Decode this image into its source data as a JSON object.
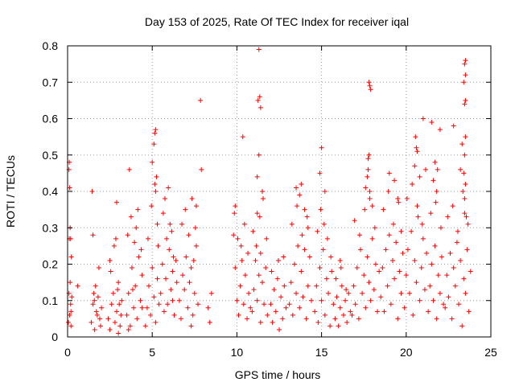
{
  "chart_data": {
    "type": "scatter",
    "title": "Day 153 of 2025, Rate Of TEC Index for receiver iqal",
    "xlabel": "GPS time / hours",
    "ylabel": "ROTI / TECUs",
    "xlim": [
      0,
      25
    ],
    "ylim": [
      0,
      0.8
    ],
    "xticks": [
      0,
      5,
      10,
      15,
      20,
      25
    ],
    "yticks": [
      0,
      0.1,
      0.2,
      0.3,
      0.4,
      0.5,
      0.6,
      0.7,
      0.8
    ],
    "xtick_labels": [
      "0",
      "5",
      "10",
      "15",
      "20",
      "25"
    ],
    "ytick_labels": [
      "0",
      "0.1",
      "0.2",
      "0.3",
      "0.4",
      "0.5",
      "0.6",
      "0.7",
      "0.8"
    ],
    "grid": true,
    "marker": "+",
    "marker_color": "#ff0000",
    "series": [
      {
        "x": [
          0.05,
          0.08,
          0.1,
          0.12,
          0.15,
          0.18,
          0.2,
          0.22,
          0.25,
          0.08,
          0.1,
          0.12,
          0.15,
          0.18,
          0.2,
          0.6,
          1.4,
          1.5,
          1.55,
          1.6,
          1.7,
          1.8,
          1.9,
          2.0,
          1.45,
          1.5,
          1.65,
          1.75,
          1.85,
          1.95,
          1.58,
          2.4,
          2.5,
          2.6,
          2.7,
          2.8,
          2.9,
          3.0,
          3.1,
          3.2,
          2.55,
          2.75,
          2.95,
          3.15,
          2.5,
          2.85,
          3.05,
          2.9,
          3.0,
          3.5,
          3.6,
          3.7,
          3.8,
          3.9,
          4.0,
          4.1,
          4.2,
          4.3,
          4.4,
          3.55,
          3.75,
          3.95,
          4.15,
          4.35,
          3.65,
          3.85,
          4.05,
          3.6,
          4.4,
          4.6,
          4.7,
          4.8,
          4.9,
          5.0,
          5.1,
          5.2,
          5.3,
          5.4,
          4.75,
          4.95,
          5.15,
          5.35,
          5.0,
          5.1,
          5.2,
          5.15,
          5.25,
          5.2,
          5.3,
          5.5,
          5.6,
          5.7,
          5.8,
          5.9,
          6.0,
          6.1,
          6.2,
          6.3,
          6.4,
          5.65,
          5.85,
          6.05,
          6.25,
          6.45,
          5.75,
          6.15,
          5.95,
          6.2,
          6.6,
          6.7,
          6.8,
          6.9,
          7.0,
          7.1,
          7.2,
          7.3,
          7.4,
          7.5,
          7.6,
          7.7,
          6.75,
          6.95,
          7.15,
          7.35,
          7.55,
          7.3,
          7.45,
          7.6,
          7.9,
          7.85,
          8.3,
          8.4,
          8.5,
          9.8,
          9.9,
          10.0,
          10.1,
          10.2,
          10.3,
          10.4,
          10.5,
          10.6,
          10.7,
          10.8,
          9.85,
          10.05,
          10.25,
          10.45,
          10.65,
          9.9,
          10.35,
          10.9,
          11.0,
          11.1,
          11.2,
          11.3,
          11.4,
          11.5,
          11.6,
          11.7,
          11.8,
          10.95,
          11.15,
          11.35,
          11.55,
          11.75,
          11.2,
          11.3,
          11.25,
          11.35,
          11.4,
          11.3,
          11.5,
          11.2,
          11.4,
          12.0,
          12.1,
          12.2,
          12.3,
          12.4,
          12.5,
          12.6,
          12.7,
          12.8,
          12.9,
          12.05,
          12.45,
          12.75,
          13.1,
          13.2,
          13.3,
          13.4,
          13.5,
          13.6,
          13.7,
          13.8,
          13.9,
          14.0,
          14.1,
          14.2,
          14.3,
          14.4,
          13.25,
          13.55,
          13.85,
          14.15,
          13.5,
          13.7,
          13.8,
          14.0,
          14.2,
          14.6,
          14.7,
          14.8,
          14.9,
          15.0,
          15.1,
          15.2,
          15.3,
          15.4,
          15.5,
          15.6,
          15.7,
          14.75,
          14.95,
          15.15,
          15.35,
          15.55,
          14.9,
          15.0,
          15.2,
          15.8,
          15.9,
          16.0,
          16.1,
          16.2,
          16.3,
          16.4,
          16.5,
          16.6,
          16.7,
          15.85,
          16.15,
          16.45,
          16.1,
          16.8,
          16.9,
          17.0,
          17.1,
          17.2,
          17.3,
          17.4,
          17.5,
          17.6,
          17.7,
          17.8,
          17.9,
          18.0,
          18.1,
          18.2,
          18.3,
          18.4,
          16.95,
          17.25,
          17.55,
          17.85,
          18.15,
          17.7,
          17.75,
          17.8,
          17.85,
          17.9,
          17.75,
          17.8,
          17.85,
          18.0,
          17.6,
          18.5,
          18.6,
          18.7,
          18.8,
          18.9,
          19.0,
          19.1,
          19.2,
          19.3,
          19.4,
          19.5,
          19.6,
          19.7,
          19.8,
          18.65,
          18.95,
          19.25,
          19.55,
          19.0,
          19.3,
          19.5,
          19.7,
          19.9,
          20.0,
          20.1,
          20.2,
          20.3,
          20.4,
          20.5,
          20.6,
          20.7,
          20.8,
          20.9,
          21.0,
          21.1,
          21.2,
          20.05,
          20.35,
          20.65,
          20.95,
          20.5,
          20.6,
          20.55,
          20.65,
          21.0,
          21.15,
          20.8,
          21.3,
          21.4,
          21.5,
          21.6,
          21.7,
          21.8,
          21.9,
          22.0,
          22.1,
          22.2,
          21.45,
          21.75,
          22.05,
          21.6,
          21.85,
          21.7,
          21.5,
          22.0,
          21.8,
          22.3,
          22.4,
          22.5,
          22.6,
          22.7,
          22.8,
          22.9,
          23.0,
          23.1,
          23.2,
          23.3,
          23.4,
          23.5,
          23.6,
          23.7,
          23.8,
          22.45,
          22.75,
          23.05,
          23.35,
          23.65,
          23.4,
          23.45,
          23.5,
          23.45,
          23.5,
          23.4,
          23.5,
          23.45,
          23.5,
          23.45,
          23.5,
          23.55,
          23.3,
          23.2,
          22.8,
          23.45
        ],
        "y": [
          0.04,
          0.12,
          0.27,
          0.06,
          0.15,
          0.09,
          0.03,
          0.22,
          0.11,
          0.46,
          0.48,
          0.41,
          0.3,
          0.27,
          0.07,
          0.14,
          0.04,
          0.09,
          0.12,
          0.02,
          0.07,
          0.11,
          0.05,
          0.08,
          0.4,
          0.28,
          0.14,
          0.06,
          0.19,
          0.03,
          0.1,
          0.05,
          0.02,
          0.09,
          0.12,
          0.04,
          0.07,
          0.15,
          0.03,
          0.1,
          0.18,
          0.25,
          0.13,
          0.06,
          0.21,
          0.27,
          0.09,
          0.37,
          0.01,
          0.06,
          0.12,
          0.03,
          0.19,
          0.08,
          0.14,
          0.05,
          0.22,
          0.1,
          0.17,
          0.28,
          0.33,
          0.26,
          0.35,
          0.24,
          0.46,
          0.13,
          0.3,
          0.02,
          0.08,
          0.03,
          0.08,
          0.14,
          0.06,
          0.19,
          0.11,
          0.04,
          0.16,
          0.09,
          0.27,
          0.36,
          0.42,
          0.25,
          0.48,
          0.53,
          0.57,
          0.56,
          0.44,
          0.4,
          0.31,
          0.12,
          0.2,
          0.07,
          0.16,
          0.09,
          0.24,
          0.13,
          0.18,
          0.06,
          0.21,
          0.34,
          0.27,
          0.31,
          0.22,
          0.15,
          0.38,
          0.29,
          0.41,
          0.1,
          0.1,
          0.05,
          0.17,
          0.13,
          0.22,
          0.08,
          0.15,
          0.19,
          0.06,
          0.12,
          0.25,
          0.09,
          0.31,
          0.35,
          0.28,
          0.38,
          0.3,
          0.03,
          0.21,
          0.36,
          0.46,
          0.65,
          0.08,
          0.04,
          0.12,
          0.28,
          0.19,
          0.1,
          0.06,
          0.14,
          0.21,
          0.09,
          0.17,
          0.05,
          0.12,
          0.08,
          0.34,
          0.27,
          0.25,
          0.31,
          0.23,
          0.36,
          0.55,
          0.07,
          0.13,
          0.21,
          0.1,
          0.17,
          0.04,
          0.15,
          0.09,
          0.19,
          0.06,
          0.29,
          0.25,
          0.33,
          0.38,
          0.27,
          0.44,
          0.5,
          0.65,
          0.66,
          0.63,
          0.79,
          0.4,
          0.34,
          0.23,
          0.09,
          0.04,
          0.13,
          0.07,
          0.16,
          0.02,
          0.11,
          0.05,
          0.14,
          0.08,
          0.18,
          0.21,
          0.22,
          0.09,
          0.15,
          0.06,
          0.2,
          0.12,
          0.25,
          0.08,
          0.18,
          0.11,
          0.24,
          0.05,
          0.14,
          0.22,
          0.1,
          0.31,
          0.36,
          0.28,
          0.33,
          0.41,
          0.39,
          0.42,
          0.35,
          0.3,
          0.07,
          0.14,
          0.04,
          0.19,
          0.1,
          0.24,
          0.06,
          0.16,
          0.12,
          0.03,
          0.18,
          0.09,
          0.29,
          0.35,
          0.31,
          0.27,
          0.22,
          0.45,
          0.52,
          0.4,
          0.05,
          0.11,
          0.03,
          0.08,
          0.14,
          0.06,
          0.1,
          0.04,
          0.12,
          0.07,
          0.16,
          0.19,
          0.13,
          0.21,
          0.06,
          0.14,
          0.09,
          0.19,
          0.05,
          0.24,
          0.12,
          0.17,
          0.08,
          0.22,
          0.15,
          0.1,
          0.27,
          0.13,
          0.2,
          0.07,
          0.18,
          0.32,
          0.28,
          0.35,
          0.38,
          0.3,
          0.44,
          0.49,
          0.7,
          0.69,
          0.68,
          0.46,
          0.5,
          0.4,
          0.36,
          0.41,
          0.11,
          0.19,
          0.07,
          0.24,
          0.14,
          0.28,
          0.09,
          0.21,
          0.16,
          0.26,
          0.05,
          0.18,
          0.12,
          0.23,
          0.35,
          0.4,
          0.31,
          0.37,
          0.45,
          0.43,
          0.38,
          0.29,
          0.08,
          0.17,
          0.24,
          0.12,
          0.29,
          0.06,
          0.21,
          0.15,
          0.33,
          0.1,
          0.19,
          0.27,
          0.13,
          0.23,
          0.38,
          0.42,
          0.36,
          0.31,
          0.47,
          0.52,
          0.55,
          0.51,
          0.6,
          0.46,
          0.44,
          0.07,
          0.14,
          0.2,
          0.1,
          0.25,
          0.05,
          0.17,
          0.12,
          0.22,
          0.09,
          0.34,
          0.37,
          0.3,
          0.43,
          0.46,
          0.48,
          0.59,
          0.57,
          0.4,
          0.08,
          0.17,
          0.11,
          0.23,
          0.05,
          0.19,
          0.14,
          0.26,
          0.09,
          0.21,
          0.03,
          0.16,
          0.12,
          0.24,
          0.07,
          0.18,
          0.33,
          0.36,
          0.29,
          0.4,
          0.31,
          0.45,
          0.5,
          0.55,
          0.64,
          0.65,
          0.7,
          0.72,
          0.75,
          0.76,
          0.38,
          0.42,
          0.33,
          0.53,
          0.46,
          0.58,
          0.34
        ]
      }
    ]
  }
}
